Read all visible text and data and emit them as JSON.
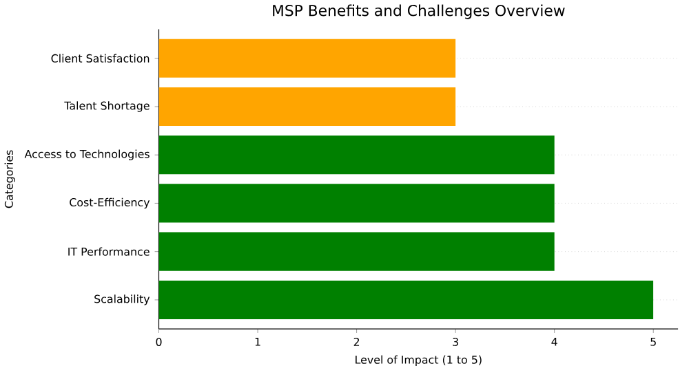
{
  "chart_data": {
    "type": "bar",
    "orientation": "horizontal",
    "title": "MSP Benefits and Challenges Overview",
    "xlabel": "Level of Impact (1 to 5)",
    "ylabel": "Categories",
    "categories": [
      "Client Satisfaction",
      "Talent Shortage",
      "Access to Technologies",
      "Cost-Efficiency",
      "IT Performance",
      "Scalability"
    ],
    "values": [
      3,
      3,
      4,
      4,
      4,
      5
    ],
    "colors": [
      "#ffa500",
      "#ffa500",
      "#008000",
      "#008000",
      "#008000",
      "#008000"
    ],
    "xlim": [
      0,
      5.25
    ],
    "xticks": [
      0,
      1,
      2,
      3,
      4,
      5
    ],
    "grid": "y"
  }
}
